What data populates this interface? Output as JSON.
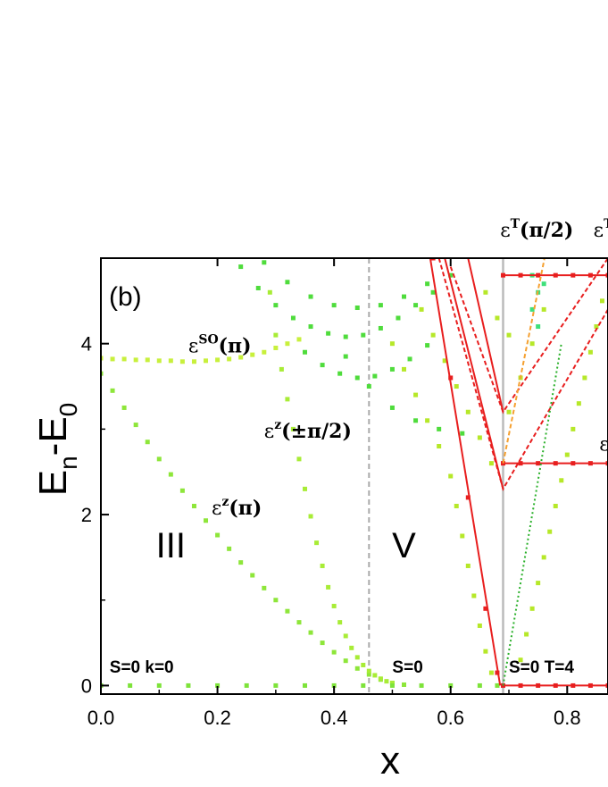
{
  "chart_data": {
    "type": "scatter",
    "panel_label": "(b)",
    "xlabel": "x",
    "ylabel_main": "E",
    "ylabel_sub1": "n",
    "ylabel_mid": "-E",
    "ylabel_sub2": "0",
    "xlim": [
      0.0,
      0.87
    ],
    "ylim": [
      -0.1,
      5.0
    ],
    "xticks": [
      0.0,
      0.2,
      0.4,
      0.6,
      0.8
    ],
    "xtick_labels": [
      "0.0",
      "0.2",
      "0.4",
      "0.6",
      "0.8"
    ],
    "yticks": [
      0,
      2,
      4
    ],
    "ytick_labels": [
      "0",
      "2",
      "4"
    ],
    "vlines": [
      {
        "x": 0.46,
        "style": "dashed",
        "color": "#aaaaaa"
      },
      {
        "x": 0.69,
        "style": "solid",
        "color": "#bbbbbb"
      }
    ],
    "phase_labels": [
      {
        "text": "III",
        "x": 0.12,
        "y": 1.5
      },
      {
        "text": "V",
        "x": 0.52,
        "y": 1.5
      }
    ],
    "state_labels": [
      {
        "text": "S=0 k=0",
        "x": 0.015,
        "y": 0.15
      },
      {
        "text": "S=0",
        "x": 0.5,
        "y": 0.15
      },
      {
        "text": "S=0 T=4",
        "x": 0.7,
        "y": 0.15
      }
    ],
    "annotations": [
      {
        "base": "ε",
        "sup": "SO",
        "arg": "(π)",
        "x": 0.15,
        "y": 3.9
      },
      {
        "base": "ε",
        "sup": "z",
        "arg": "(±π/2)",
        "x": 0.28,
        "y": 2.9
      },
      {
        "base": "ε",
        "sup": "z",
        "arg": "(π)",
        "x": 0.19,
        "y": 2.0
      },
      {
        "base": "ε",
        "sup": "T",
        "arg": "(π/2)",
        "x": 0.685,
        "y": 5.25
      },
      {
        "base": "ε",
        "sup": "T",
        "arg": "",
        "x": 0.845,
        "y": 5.25
      },
      {
        "base": "ε",
        "sup": "",
        "arg": "",
        "x": 0.855,
        "y": 2.75
      }
    ],
    "series": [
      {
        "color": "#c8f03c",
        "points": [
          [
            0.0,
            3.83
          ],
          [
            0.02,
            3.82
          ],
          [
            0.04,
            3.82
          ],
          [
            0.06,
            3.81
          ],
          [
            0.08,
            3.81
          ],
          [
            0.1,
            3.8
          ],
          [
            0.12,
            3.8
          ],
          [
            0.14,
            3.79
          ],
          [
            0.16,
            3.79
          ],
          [
            0.18,
            3.8
          ],
          [
            0.2,
            3.81
          ],
          [
            0.22,
            3.82
          ],
          [
            0.24,
            3.84
          ],
          [
            0.26,
            3.87
          ],
          [
            0.28,
            3.9
          ],
          [
            0.3,
            3.95
          ],
          [
            0.32,
            4.0
          ],
          [
            0.34,
            4.05
          ]
        ]
      },
      {
        "color": "#8ee63a",
        "points": [
          [
            0.0,
            3.65
          ],
          [
            0.02,
            3.45
          ],
          [
            0.04,
            3.25
          ],
          [
            0.06,
            3.05
          ],
          [
            0.08,
            2.85
          ],
          [
            0.1,
            2.65
          ],
          [
            0.12,
            2.47
          ],
          [
            0.14,
            2.28
          ],
          [
            0.16,
            2.1
          ],
          [
            0.18,
            1.93
          ],
          [
            0.2,
            1.76
          ],
          [
            0.22,
            1.6
          ],
          [
            0.24,
            1.44
          ],
          [
            0.26,
            1.29
          ],
          [
            0.28,
            1.14
          ],
          [
            0.3,
            1.0
          ],
          [
            0.32,
            0.87
          ],
          [
            0.34,
            0.74
          ],
          [
            0.36,
            0.62
          ],
          [
            0.38,
            0.5
          ],
          [
            0.4,
            0.39
          ],
          [
            0.42,
            0.29
          ],
          [
            0.44,
            0.2
          ],
          [
            0.46,
            0.13
          ],
          [
            0.48,
            0.07
          ],
          [
            0.5,
            0.03
          ],
          [
            0.52,
            0.01
          ]
        ]
      },
      {
        "color": "#a8ec36",
        "points": [
          [
            0.29,
            4.6
          ],
          [
            0.3,
            4.1
          ],
          [
            0.31,
            3.7
          ],
          [
            0.32,
            3.35
          ],
          [
            0.33,
            3.0
          ],
          [
            0.34,
            2.65
          ],
          [
            0.35,
            2.3
          ],
          [
            0.36,
            1.98
          ],
          [
            0.37,
            1.67
          ],
          [
            0.38,
            1.4
          ],
          [
            0.39,
            1.15
          ],
          [
            0.4,
            0.93
          ],
          [
            0.41,
            0.74
          ],
          [
            0.42,
            0.58
          ],
          [
            0.43,
            0.44
          ],
          [
            0.44,
            0.33
          ],
          [
            0.45,
            0.24
          ],
          [
            0.46,
            0.17
          ],
          [
            0.47,
            0.12
          ],
          [
            0.48,
            0.08
          ],
          [
            0.49,
            0.05
          ],
          [
            0.5,
            0.03
          ]
        ]
      },
      {
        "color": "#4fdc3c",
        "points": [
          [
            0.24,
            4.9
          ],
          [
            0.27,
            4.65
          ],
          [
            0.3,
            4.45
          ],
          [
            0.33,
            4.3
          ],
          [
            0.36,
            4.2
          ],
          [
            0.39,
            4.12
          ],
          [
            0.42,
            4.08
          ],
          [
            0.45,
            4.1
          ],
          [
            0.48,
            4.18
          ],
          [
            0.51,
            4.3
          ],
          [
            0.54,
            4.45
          ],
          [
            0.57,
            4.6
          ],
          [
            0.6,
            4.8
          ],
          [
            0.28,
            4.95
          ],
          [
            0.32,
            4.72
          ],
          [
            0.36,
            4.55
          ],
          [
            0.4,
            4.45
          ],
          [
            0.44,
            4.42
          ],
          [
            0.48,
            4.45
          ],
          [
            0.52,
            4.55
          ],
          [
            0.56,
            4.7
          ],
          [
            0.35,
            3.9
          ],
          [
            0.38,
            3.75
          ],
          [
            0.41,
            3.65
          ],
          [
            0.44,
            3.6
          ],
          [
            0.47,
            3.62
          ],
          [
            0.5,
            3.7
          ],
          [
            0.53,
            3.82
          ],
          [
            0.56,
            3.98
          ],
          [
            0.42,
            3.85
          ],
          [
            0.46,
            3.5
          ],
          [
            0.5,
            3.25
          ],
          [
            0.54,
            3.1
          ],
          [
            0.58,
            3.0
          ],
          [
            0.62,
            2.95
          ]
        ]
      },
      {
        "color": "#b6e829",
        "points": [
          [
            0.5,
            4.0
          ],
          [
            0.52,
            3.7
          ],
          [
            0.54,
            3.4
          ],
          [
            0.56,
            3.1
          ],
          [
            0.58,
            2.8
          ],
          [
            0.6,
            2.45
          ],
          [
            0.61,
            2.1
          ],
          [
            0.62,
            1.75
          ],
          [
            0.63,
            1.4
          ],
          [
            0.64,
            1.05
          ],
          [
            0.65,
            0.7
          ],
          [
            0.66,
            0.4
          ],
          [
            0.67,
            0.15
          ],
          [
            0.55,
            4.4
          ],
          [
            0.57,
            4.1
          ],
          [
            0.59,
            3.8
          ],
          [
            0.61,
            3.5
          ],
          [
            0.63,
            3.2
          ],
          [
            0.65,
            2.9
          ],
          [
            0.67,
            2.6
          ],
          [
            0.72,
            0.3
          ],
          [
            0.73,
            0.6
          ],
          [
            0.74,
            0.9
          ],
          [
            0.75,
            1.2
          ],
          [
            0.76,
            1.5
          ],
          [
            0.77,
            1.8
          ],
          [
            0.78,
            2.1
          ],
          [
            0.79,
            2.4
          ],
          [
            0.8,
            2.7
          ],
          [
            0.81,
            3.0
          ],
          [
            0.82,
            3.3
          ],
          [
            0.83,
            3.6
          ],
          [
            0.84,
            3.9
          ],
          [
            0.85,
            4.2
          ],
          [
            0.86,
            4.5
          ],
          [
            0.7,
            3.2
          ],
          [
            0.72,
            3.6
          ],
          [
            0.74,
            4.0
          ],
          [
            0.76,
            4.4
          ],
          [
            0.66,
            4.6
          ],
          [
            0.68,
            4.3
          ],
          [
            0.7,
            4.1
          ]
        ]
      },
      {
        "color": "#7ee33a",
        "points": [
          [
            0.0,
            0.0
          ],
          [
            0.05,
            0.0
          ],
          [
            0.1,
            0.0
          ],
          [
            0.15,
            0.0
          ],
          [
            0.2,
            0.0
          ],
          [
            0.25,
            0.0
          ],
          [
            0.3,
            0.0
          ],
          [
            0.35,
            0.0
          ],
          [
            0.4,
            0.0
          ],
          [
            0.45,
            0.0
          ],
          [
            0.5,
            0.0
          ],
          [
            0.55,
            0.0
          ],
          [
            0.6,
            0.0
          ],
          [
            0.65,
            0.0
          ],
          [
            0.68,
            0.0
          ]
        ]
      },
      {
        "color": "#3ee07a",
        "points": [
          [
            0.74,
            4.8
          ],
          [
            0.75,
            4.6
          ],
          [
            0.74,
            4.4
          ],
          [
            0.75,
            4.2
          ],
          [
            0.76,
            4.7
          ]
        ]
      },
      {
        "color": "#e82020",
        "points": [
          [
            0.69,
            0.0
          ],
          [
            0.72,
            0.0
          ],
          [
            0.75,
            0.0
          ],
          [
            0.78,
            0.0
          ],
          [
            0.81,
            0.0
          ],
          [
            0.84,
            0.0
          ],
          [
            0.87,
            0.0
          ],
          [
            0.69,
            2.6
          ],
          [
            0.72,
            2.6
          ],
          [
            0.75,
            2.6
          ],
          [
            0.78,
            2.6
          ],
          [
            0.81,
            2.6
          ],
          [
            0.84,
            2.6
          ],
          [
            0.87,
            2.6
          ],
          [
            0.69,
            4.8
          ],
          [
            0.72,
            4.8
          ],
          [
            0.75,
            4.8
          ],
          [
            0.78,
            4.8
          ],
          [
            0.81,
            4.8
          ],
          [
            0.84,
            4.8
          ],
          [
            0.87,
            4.8
          ],
          [
            0.57,
            5.0
          ],
          [
            0.6,
            3.6
          ],
          [
            0.63,
            2.2
          ],
          [
            0.66,
            0.9
          ],
          [
            0.68,
            0.15
          ]
        ]
      }
    ],
    "lines": [
      {
        "color": "#e81e1e",
        "style": "solid",
        "points": [
          [
            0.565,
            5.0
          ],
          [
            0.685,
            0.0
          ]
        ]
      },
      {
        "color": "#e81e1e",
        "style": "solid",
        "points": [
          [
            0.59,
            5.0
          ],
          [
            0.69,
            2.3
          ]
        ]
      },
      {
        "color": "#e81e1e",
        "style": "solid",
        "points": [
          [
            0.63,
            5.0
          ],
          [
            0.69,
            3.2
          ]
        ]
      },
      {
        "color": "#e81e1e",
        "style": "solid",
        "points": [
          [
            0.69,
            0.0
          ],
          [
            0.87,
            0.0
          ]
        ]
      },
      {
        "color": "#e81e1e",
        "style": "solid",
        "points": [
          [
            0.69,
            2.6
          ],
          [
            0.87,
            2.6
          ]
        ]
      },
      {
        "color": "#e81e1e",
        "style": "solid",
        "points": [
          [
            0.69,
            4.8
          ],
          [
            0.87,
            4.8
          ]
        ]
      },
      {
        "color": "#e81e1e",
        "style": "dashed",
        "points": [
          [
            0.58,
            5.0
          ],
          [
            0.69,
            2.3
          ],
          [
            0.87,
            4.4
          ]
        ]
      },
      {
        "color": "#e81e1e",
        "style": "dashed",
        "points": [
          [
            0.6,
            4.9
          ],
          [
            0.69,
            3.2
          ],
          [
            0.87,
            5.0
          ]
        ]
      },
      {
        "color": "#f5a030",
        "style": "dashed",
        "points": [
          [
            0.69,
            2.6
          ],
          [
            0.77,
            5.3
          ]
        ]
      },
      {
        "color": "#2ab02a",
        "style": "dotted",
        "points": [
          [
            0.69,
            0.0
          ],
          [
            0.79,
            4.0
          ]
        ]
      }
    ]
  }
}
